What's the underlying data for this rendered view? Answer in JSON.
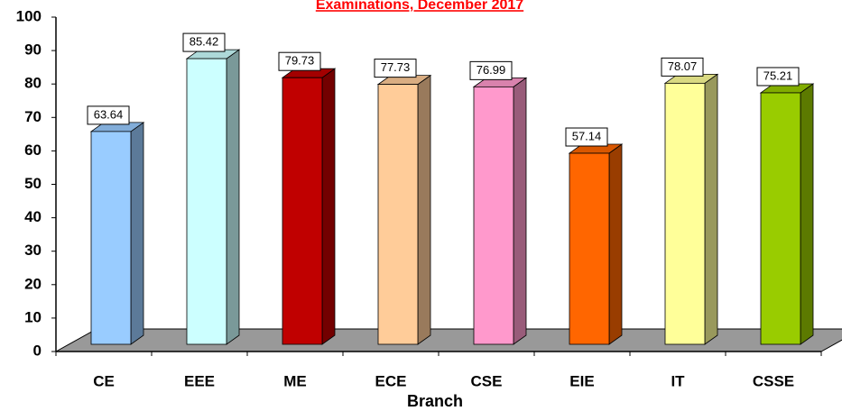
{
  "chart_data": {
    "type": "bar3d",
    "title": "Examinations, December 2017",
    "x_label": "Branch",
    "categories": [
      "CE",
      "EEE",
      "ME",
      "ECE",
      "CSE",
      "EIE",
      "IT",
      "CSSE"
    ],
    "values": [
      63.64,
      85.42,
      79.73,
      77.73,
      76.99,
      57.14,
      78.07,
      75.21
    ],
    "colors": [
      "#99ccff",
      "#ccffff",
      "#c00000",
      "#ffcc99",
      "#ff99cc",
      "#ff6600",
      "#ffff99",
      "#99cc00"
    ],
    "ylim": [
      0,
      100
    ],
    "yticks": [
      0,
      10,
      20,
      30,
      40,
      50,
      60,
      70,
      80,
      90,
      100
    ]
  }
}
